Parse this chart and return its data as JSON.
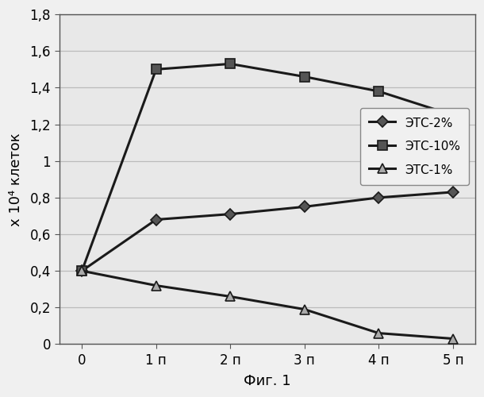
{
  "x_labels": [
    "0",
    "1 п",
    "2 п",
    "3 п",
    "4 п",
    "5 п"
  ],
  "x_values": [
    0,
    1,
    2,
    3,
    4,
    5
  ],
  "series": [
    {
      "label": "ЭТС-2%",
      "values": [
        0.4,
        0.68,
        0.71,
        0.75,
        0.8,
        0.83
      ],
      "color": "#1a1a1a",
      "marker": "D",
      "markersize": 7,
      "markerfacecolor": "#555555",
      "linewidth": 2.2
    },
    {
      "label": "ЭТС-10%",
      "values": [
        0.4,
        1.5,
        1.53,
        1.46,
        1.38,
        1.25
      ],
      "color": "#1a1a1a",
      "marker": "s",
      "markersize": 8,
      "markerfacecolor": "#555555",
      "linewidth": 2.2
    },
    {
      "label": "ЭТС-1%",
      "values": [
        0.4,
        0.32,
        0.26,
        0.19,
        0.06,
        0.03
      ],
      "color": "#1a1a1a",
      "marker": "^",
      "markersize": 8,
      "markerfacecolor": "#aaaaaa",
      "linewidth": 2.2
    }
  ],
  "ylabel": "x 10⁴ клеток",
  "xlabel": "Фиг. 1",
  "ylim": [
    0,
    1.8
  ],
  "yticks": [
    0,
    0.2,
    0.4,
    0.6,
    0.8,
    1.0,
    1.2,
    1.4,
    1.6,
    1.8
  ],
  "ytick_labels": [
    "0",
    "0,2",
    "0,4",
    "0,6",
    "0,8",
    "1",
    "1,2",
    "1,4",
    "1,6",
    "1,8"
  ],
  "grid_color": "#bbbbbb",
  "background_color": "#f0f0f0",
  "plot_bg_color": "#e8e8e8",
  "tick_fontsize": 12,
  "label_fontsize": 13
}
